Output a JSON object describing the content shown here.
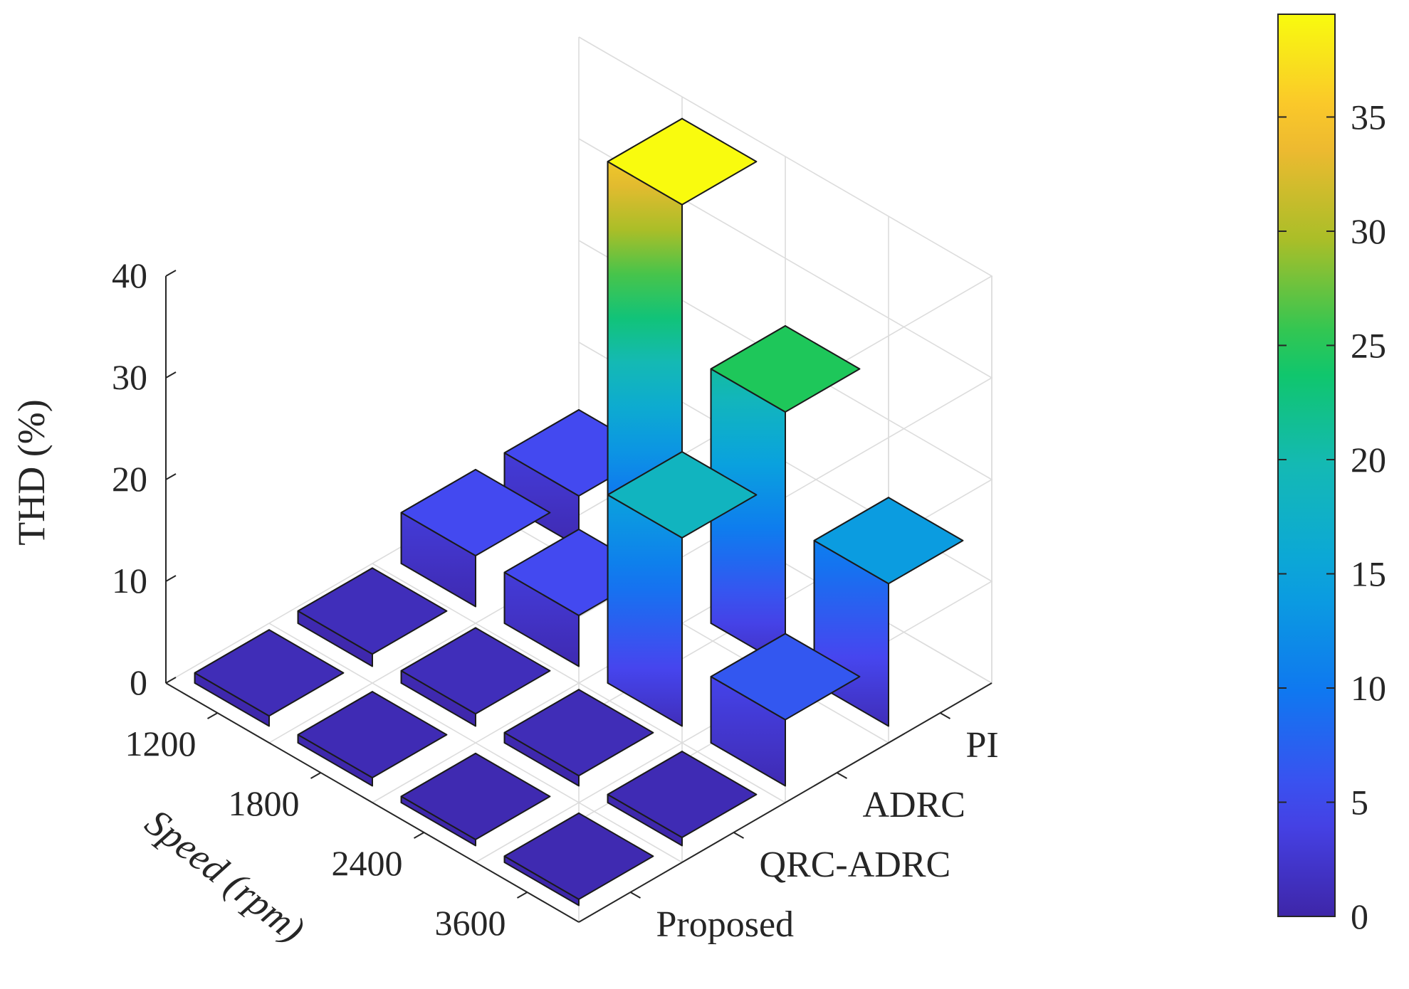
{
  "chart_data": {
    "type": "bar3d",
    "title": "",
    "zlabel": "THD (%)",
    "xlabel": "Speed (rpm)",
    "ylabel": "",
    "speeds": [
      "1200",
      "1800",
      "2400",
      "3600"
    ],
    "methods": [
      "Proposed",
      "QRC-ADRC",
      "ADRC",
      "PI"
    ],
    "zlim": [
      0,
      40
    ],
    "zticks": [
      "0",
      "10",
      "20",
      "30",
      "40"
    ],
    "grid": true,
    "colorbar": {
      "position": "right",
      "range": [
        0,
        39.5
      ],
      "ticks": [
        "0",
        "5",
        "10",
        "15",
        "20",
        "25",
        "30",
        "35"
      ],
      "colormap": "parula"
    },
    "series": [
      {
        "name": "Proposed",
        "values": [
          1.0,
          0.8,
          0.6,
          0.6
        ]
      },
      {
        "name": "QRC-ADRC",
        "values": [
          1.2,
          1.2,
          1.0,
          0.8
        ]
      },
      {
        "name": "ADRC",
        "values": [
          5.0,
          5.0,
          18.5,
          6.5
        ]
      },
      {
        "name": "PI",
        "values": [
          5.0,
          39.5,
          25.0,
          14.0
        ]
      }
    ]
  }
}
